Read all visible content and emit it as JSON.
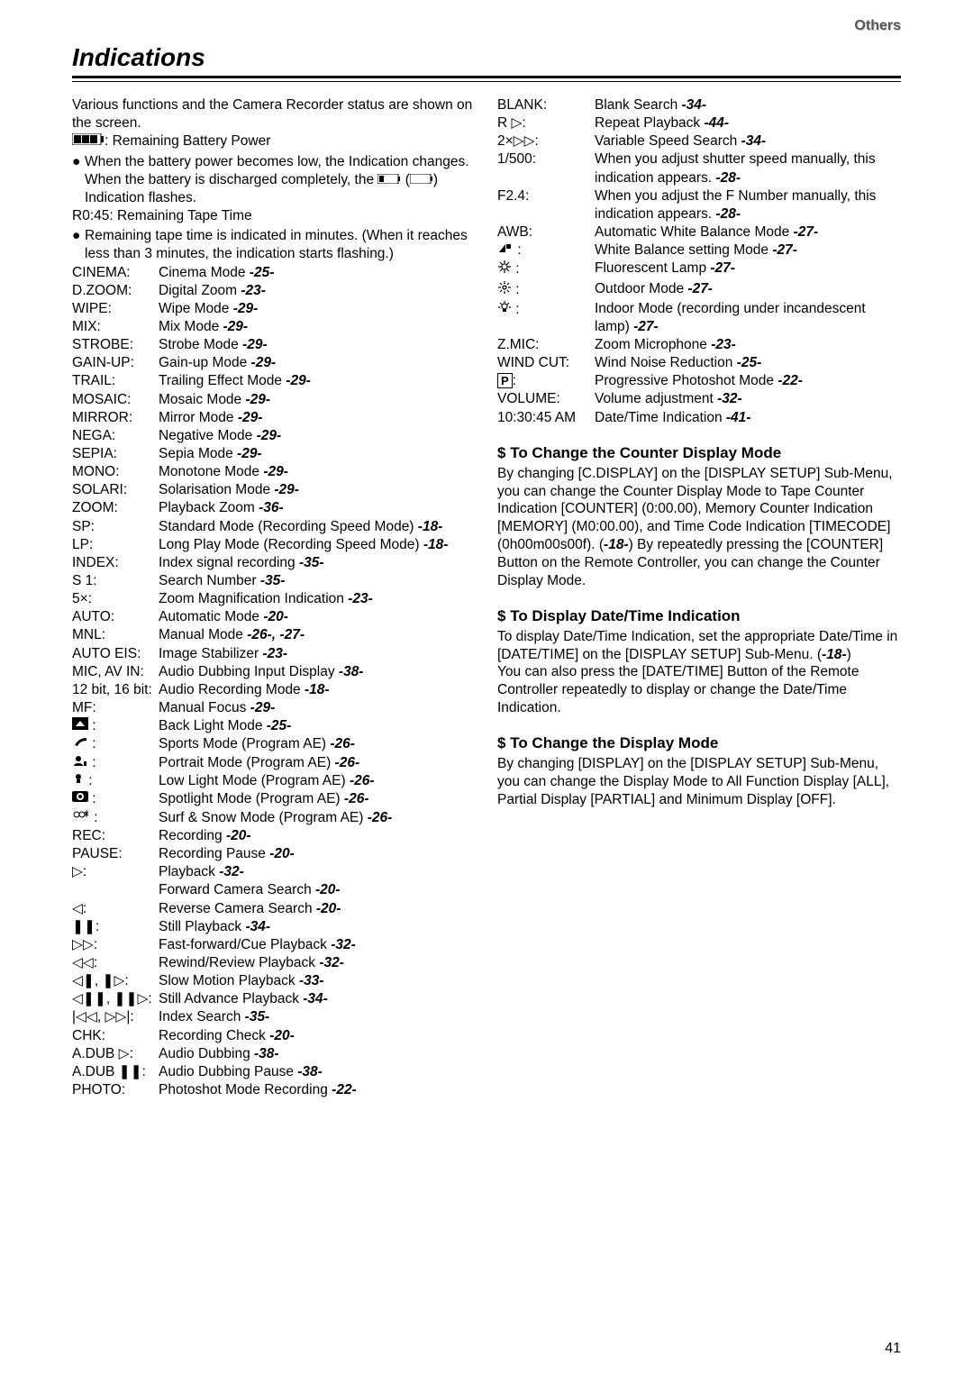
{
  "headerRight": "Others",
  "title": "Indications",
  "pageNumber": "41",
  "intro": [
    "Various functions and the Camera Recorder status are shown on the screen."
  ],
  "batteryLabel": ": Remaining Battery Power",
  "batteryBullet": "When the battery power becomes low, the Indication changes. When the battery is discharged completely, the",
  "batteryBulletTail": " Indication flashes.",
  "tapeTimeLabel": "R0:45: Remaining Tape Time",
  "tapeTimeBullet": "Remaining tape time is indicated in minutes. (When it reaches less than 3 minutes, the indication starts flashing.)",
  "leftRows": [
    {
      "l": "CINEMA:",
      "d": "Cinema Mode ",
      "p": "-25-"
    },
    {
      "l": "D.ZOOM:",
      "d": "Digital Zoom ",
      "p": "-23-"
    },
    {
      "l": "WIPE:",
      "d": "Wipe Mode ",
      "p": "-29-"
    },
    {
      "l": "MIX:",
      "d": "Mix Mode ",
      "p": "-29-"
    },
    {
      "l": "STROBE:",
      "d": "Strobe Mode ",
      "p": "-29-"
    },
    {
      "l": "GAIN-UP:",
      "d": "Gain-up Mode ",
      "p": "-29-"
    },
    {
      "l": "TRAIL:",
      "d": "Trailing Effect Mode ",
      "p": "-29-"
    },
    {
      "l": "MOSAIC:",
      "d": "Mosaic Mode ",
      "p": "-29-"
    },
    {
      "l": "MIRROR:",
      "d": "Mirror Mode ",
      "p": "-29-"
    },
    {
      "l": "NEGA:",
      "d": "Negative Mode ",
      "p": "-29-"
    },
    {
      "l": "SEPIA:",
      "d": "Sepia Mode ",
      "p": "-29-"
    },
    {
      "l": "MONO:",
      "d": "Monotone Mode ",
      "p": "-29-"
    },
    {
      "l": "SOLARI:",
      "d": "Solarisation Mode ",
      "p": "-29-"
    },
    {
      "l": "ZOOM:",
      "d": "Playback Zoom ",
      "p": "-36-"
    },
    {
      "l": "SP:",
      "d": "Standard Mode (Recording Speed Mode) ",
      "p": "-18-"
    },
    {
      "l": "LP:",
      "d": "Long Play Mode (Recording Speed Mode) ",
      "p": "-18-"
    },
    {
      "l": "INDEX:",
      "d": "Index signal recording ",
      "p": "-35-"
    },
    {
      "l": "S 1:",
      "d": "Search Number ",
      "p": "-35-"
    },
    {
      "l": "5×:",
      "d": "Zoom Magnification Indication ",
      "p": "-23-"
    },
    {
      "l": "AUTO:",
      "d": "Automatic Mode ",
      "p": "-20-"
    },
    {
      "l": "MNL:",
      "d": "Manual Mode ",
      "p": "-26-, -27-"
    },
    {
      "l": "AUTO EIS:",
      "d": "Image Stabilizer ",
      "p": "-23-"
    },
    {
      "l": "MIC, AV IN:",
      "d": "Audio Dubbing Input Display ",
      "p": "-38-"
    },
    {
      "l": "12 bit, 16 bit:",
      "d": "Audio Recording Mode ",
      "p": "-18-"
    },
    {
      "l": "MF:",
      "d": "Manual Focus ",
      "p": "-29-"
    }
  ],
  "iconRows": [
    {
      "icon": "backlight",
      "d": "Back Light Mode ",
      "p": "-25-"
    },
    {
      "icon": "sports",
      "d": "Sports Mode (Program AE) ",
      "p": "-26-"
    },
    {
      "icon": "portrait",
      "d": "Portrait Mode (Program AE) ",
      "p": "-26-"
    },
    {
      "icon": "lowlight",
      "d": "Low Light Mode (Program AE) ",
      "p": "-26-"
    },
    {
      "icon": "spotlight",
      "d": "Spotlight Mode (Program AE) ",
      "p": "-26-"
    },
    {
      "icon": "surf",
      "d": "Surf & Snow Mode (Program AE) ",
      "p": "-26-"
    }
  ],
  "leftRows2": [
    {
      "l": "REC:",
      "d": "Recording ",
      "p": "-20-"
    },
    {
      "l": "PAUSE:",
      "d": "Recording Pause ",
      "p": "-20-"
    }
  ],
  "playRows": [
    {
      "icon": "play",
      "d": "Playback ",
      "p": "-32-"
    },
    {
      "icon": "",
      "d": "Forward Camera Search ",
      "p": "-20-"
    },
    {
      "icon": "rev",
      "d": "Reverse Camera Search ",
      "p": "-20-"
    },
    {
      "icon": "pause",
      "d": "Still Playback ",
      "p": "-34-"
    },
    {
      "icon": "ff",
      "d": "Fast-forward/Cue Playback ",
      "p": "-32-"
    },
    {
      "icon": "rw",
      "d": "Rewind/Review Playback ",
      "p": "-32-"
    },
    {
      "icon": "slow",
      "d": "Slow Motion Playback ",
      "p": "-33-"
    },
    {
      "icon": "stilladv",
      "d": "Still Advance Playback ",
      "p": "-34-"
    },
    {
      "icon": "indexsearch",
      "d": "Index Search ",
      "p": "-35-"
    }
  ],
  "leftRows3": [
    {
      "l": "CHK:",
      "d": "Recording Check ",
      "p": "-20-"
    },
    {
      "l": "A.DUB ▷:",
      "d": "Audio Dubbing ",
      "p": "-38-"
    },
    {
      "l": "A.DUB ❚❚:",
      "d": "Audio Dubbing Pause ",
      "p": "-38-"
    },
    {
      "l": "PHOTO:",
      "d": "Photoshot Mode Recording ",
      "p": "-22-"
    }
  ],
  "rightRows": [
    {
      "l": "BLANK:",
      "d": "Blank Search ",
      "p": "-34-"
    },
    {
      "l": "R ▷:",
      "d": "Repeat Playback ",
      "p": "-44-"
    },
    {
      "l": "2×▷▷:",
      "d": "Variable Speed Search ",
      "p": "-34-"
    },
    {
      "l": "1/500:",
      "d": "When you adjust shutter speed manually, this indication appears. ",
      "p": "-28-"
    },
    {
      "l": "F2.4:",
      "d": "When you adjust the F Number manually, this indication appears. ",
      "p": "-28-"
    },
    {
      "l": "AWB:",
      "d": "Automatic White Balance Mode ",
      "p": "-27-"
    }
  ],
  "rightIconRows": [
    {
      "icon": "wbset",
      "d": "White Balance setting Mode ",
      "p": "-27-"
    },
    {
      "icon": "fluorescent",
      "d": "Fluorescent Lamp ",
      "p": "-27-"
    },
    {
      "icon": "outdoor",
      "d": "Outdoor Mode ",
      "p": "-27-"
    },
    {
      "icon": "indoor",
      "d": "Indoor Mode (recording under incandescent lamp) ",
      "p": "-27-"
    }
  ],
  "rightRows2": [
    {
      "l": "Z.MIC:",
      "d": "Zoom Microphone ",
      "p": "-23-"
    },
    {
      "l": "WIND CUT:",
      "d": "Wind Noise Reduction ",
      "p": "-25-"
    }
  ],
  "progRow": {
    "d": "Progressive Photoshot Mode ",
    "p": "-22-"
  },
  "rightRows3": [
    {
      "l": "VOLUME:",
      "d": "Volume adjustment ",
      "p": "-32-"
    },
    {
      "l": "10:30:45 AM",
      "d": "Date/Time Indication ",
      "p": "-41-"
    }
  ],
  "sections": [
    {
      "head": "To Change the Counter Display Mode",
      "body": "By changing [C.DISPLAY] on the [DISPLAY SETUP] Sub-Menu, you can change the Counter Display Mode to Tape Counter Indication [COUNTER] (0:00.00), Memory Counter Indication [MEMORY] (M0:00.00), and Time Code Indication [TIMECODE] (0h00m00s00f). (",
      "p": "-18-",
      "body2": ") By repeatedly pressing the [COUNTER] Button on the Remote Controller, you can change the Counter Display Mode."
    },
    {
      "head": "To Display Date/Time Indication",
      "body": "To display Date/Time Indication, set the appropriate Date/Time in [DATE/TIME] on the [DISPLAY SETUP] Sub-Menu. (",
      "p": "-18-",
      "body2": ")\nYou can also press the [DATE/TIME] Button of the Remote Controller repeatedly to display or change the Date/Time Indication."
    },
    {
      "head": "To Change the Display Mode",
      "body": "By changing [DISPLAY] on the [DISPLAY SETUP] Sub-Menu, you can change the Display Mode to All Function Display [ALL], Partial Display [PARTIAL] and Minimum Display [OFF].",
      "p": "",
      "body2": ""
    }
  ]
}
